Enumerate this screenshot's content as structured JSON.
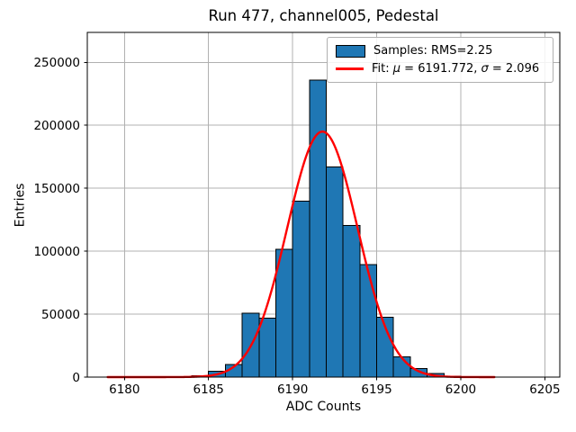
{
  "chart_data": {
    "type": "bar",
    "subtype": "histogram_with_gaussian_fit",
    "title": "Run 477, channel005, Pedestal",
    "xlabel": "ADC Counts",
    "ylabel": "Entries",
    "xlim": [
      6177.79,
      6205.89
    ],
    "ylim": [
      0,
      273800
    ],
    "xticks": [
      6180,
      6185,
      6190,
      6195,
      6200,
      6205
    ],
    "yticks": [
      0,
      50000,
      100000,
      150000,
      200000,
      250000
    ],
    "grid": true,
    "grid_color": "#b0b0b0",
    "background_color": "#ffffff",
    "histogram": {
      "bin_width": 1,
      "bin_left_edges": [
        6184,
        6185,
        6186,
        6187,
        6188,
        6189,
        6190,
        6191,
        6192,
        6193,
        6194,
        6195,
        6196,
        6197,
        6198,
        6199
      ],
      "counts": [
        1100,
        4600,
        10100,
        50800,
        46800,
        101400,
        139700,
        236000,
        167100,
        120300,
        89500,
        47400,
        16000,
        6800,
        3000,
        800
      ],
      "rms": 2.25,
      "fill_color": "#1f77b4",
      "edge_color": "#000000"
    },
    "fit_curve": {
      "type": "gaussian",
      "mu": 6191.772,
      "sigma": 2.096,
      "amplitude": 195000,
      "x_start": 6179,
      "x_end": 6202,
      "color": "#ff0000",
      "line_width": 2
    },
    "legend": {
      "position": "upper right",
      "entries": [
        {
          "swatch": "patch",
          "label": "Samples: RMS=2.25"
        },
        {
          "swatch": "line",
          "label": "Fit: μ = 6191.772, σ = 2.096",
          "parts": [
            {
              "text": "Fit: ",
              "italic": false
            },
            {
              "text": "μ",
              "italic": true
            },
            {
              "text": " = 6191.772, ",
              "italic": false
            },
            {
              "text": "σ",
              "italic": true
            },
            {
              "text": " = 2.096",
              "italic": false
            }
          ]
        }
      ]
    }
  }
}
